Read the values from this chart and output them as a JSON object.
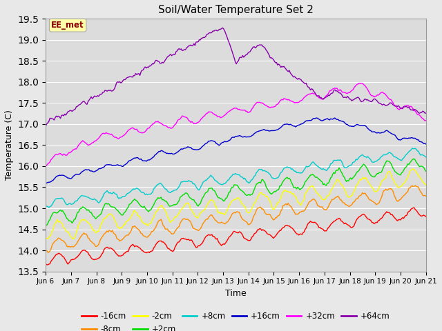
{
  "title": "Soil/Water Temperature Set 2",
  "xlabel": "Time",
  "ylabel": "Temperature (C)",
  "ylim": [
    13.5,
    19.5
  ],
  "yticks": [
    13.5,
    14.0,
    14.5,
    15.0,
    15.5,
    16.0,
    16.5,
    17.0,
    17.5,
    18.0,
    18.5,
    19.0,
    19.5
  ],
  "n_points": 360,
  "days": 15,
  "colors": {
    "-16cm": "#ff0000",
    "-8cm": "#ff8c00",
    "-2cm": "#ffff00",
    "+2cm": "#00dd00",
    "+8cm": "#00cccc",
    "+16cm": "#0000cc",
    "+32cm": "#ff00ff",
    "+64cm": "#8800aa"
  },
  "bg_color": "#e8e8e8",
  "plot_bg": "#dcdcdc",
  "annotation_text": "EE_met",
  "annotation_bg": "#ffffaa",
  "annotation_fg": "#880000",
  "x_tick_labels": [
    "Jun 6",
    "Jun 7",
    "Jun 8",
    "Jun 9",
    "Jun 10",
    "Jun 11",
    "Jun 12",
    "Jun 13",
    "Jun 14",
    "Jun 15",
    "Jun 16",
    "Jun 17",
    "Jun 18",
    "Jun 19",
    "Jun 20",
    "Jun 21"
  ],
  "lw": 1.0,
  "figsize": [
    6.4,
    4.8
  ],
  "dpi": 100
}
